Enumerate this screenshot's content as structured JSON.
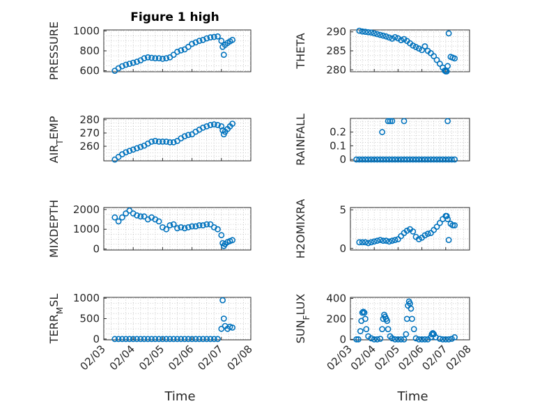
{
  "figure": {
    "title": "Figure 1 high",
    "marker_color": "#0072bd",
    "xlabel": "Time"
  },
  "chart_data": [
    {
      "type": "scatter",
      "ylabel": "PRESSURE",
      "title": "Figure 1 high",
      "xlim": [
        "2024-02-03",
        "2024-02-08"
      ],
      "ylim": [
        590,
        1010
      ],
      "yticks": [
        600,
        800,
        1000
      ],
      "grid": true,
      "series": [
        {
          "x": [
            "2024-02-03T09:00",
            "2024-02-03T12:00",
            "2024-02-03T15:00",
            "2024-02-03T18:00",
            "2024-02-03T21:00",
            "2024-02-04T00:00",
            "2024-02-04T03:00",
            "2024-02-04T06:00",
            "2024-02-04T09:00",
            "2024-02-04T12:00",
            "2024-02-04T15:00",
            "2024-02-04T18:00",
            "2024-02-04T21:00",
            "2024-02-05T00:00",
            "2024-02-05T03:00",
            "2024-02-05T06:00",
            "2024-02-05T09:00",
            "2024-02-05T12:00",
            "2024-02-05T15:00",
            "2024-02-05T18:00",
            "2024-02-05T21:00",
            "2024-02-06T00:00",
            "2024-02-06T03:00",
            "2024-02-06T06:00",
            "2024-02-06T09:00",
            "2024-02-06T12:00",
            "2024-02-06T15:00",
            "2024-02-06T18:00",
            "2024-02-06T21:00",
            "2024-02-07T00:00",
            "2024-02-07T01:00",
            "2024-02-07T02:00",
            "2024-02-07T03:00",
            "2024-02-07T05:00",
            "2024-02-07T07:00",
            "2024-02-07T09:00"
          ],
          "y": [
            600,
            625,
            645,
            660,
            670,
            680,
            690,
            705,
            725,
            735,
            730,
            725,
            725,
            720,
            725,
            735,
            760,
            790,
            805,
            815,
            840,
            870,
            885,
            900,
            910,
            925,
            935,
            940,
            945,
            900,
            840,
            760,
            860,
            880,
            895,
            910
          ]
        }
      ]
    },
    {
      "type": "scatter",
      "ylabel": "THETA",
      "xlim": [
        "2024-02-03",
        "2024-02-08"
      ],
      "ylim": [
        279.5,
        290.5
      ],
      "yticks": [
        280,
        285,
        290
      ],
      "grid": true,
      "series": [
        {
          "x": [
            "2024-02-03T09:00",
            "2024-02-03T12:00",
            "2024-02-03T15:00",
            "2024-02-03T18:00",
            "2024-02-03T21:00",
            "2024-02-04T00:00",
            "2024-02-04T03:00",
            "2024-02-04T06:00",
            "2024-02-04T09:00",
            "2024-02-04T12:00",
            "2024-02-04T15:00",
            "2024-02-04T18:00",
            "2024-02-04T21:00",
            "2024-02-05T00:00",
            "2024-02-05T03:00",
            "2024-02-05T06:00",
            "2024-02-05T09:00",
            "2024-02-05T12:00",
            "2024-02-05T15:00",
            "2024-02-05T18:00",
            "2024-02-05T21:00",
            "2024-02-06T00:00",
            "2024-02-06T03:00",
            "2024-02-06T06:00",
            "2024-02-06T09:00",
            "2024-02-06T12:00",
            "2024-02-06T15:00",
            "2024-02-06T18:00",
            "2024-02-06T21:00",
            "2024-02-06T23:00",
            "2024-02-07T00:00",
            "2024-02-07T01:00",
            "2024-02-07T02:00",
            "2024-02-07T03:00",
            "2024-02-07T05:00",
            "2024-02-07T07:00",
            "2024-02-07T09:00"
          ],
          "y": [
            290.3,
            290.1,
            290.0,
            289.9,
            289.8,
            289.6,
            289.4,
            289.2,
            289.0,
            288.8,
            288.5,
            288.2,
            288.6,
            288.3,
            287.8,
            288.1,
            287.6,
            287.0,
            286.4,
            286.0,
            285.6,
            285.2,
            286.2,
            285.0,
            284.4,
            283.6,
            282.6,
            281.6,
            280.6,
            279.8,
            279.6,
            279.6,
            281.0,
            289.6,
            283.4,
            283.2,
            283.0
          ]
        }
      ]
    },
    {
      "type": "scatter",
      "ylabel": "AIR",
      "ylabel_sub": "T",
      "ylabel_rest": "EMP",
      "xlim": [
        "2024-02-03",
        "2024-02-08"
      ],
      "ylim": [
        249,
        281
      ],
      "yticks": [
        260,
        270,
        280
      ],
      "grid": true,
      "series": [
        {
          "x": [
            "2024-02-03T09:00",
            "2024-02-03T12:00",
            "2024-02-03T15:00",
            "2024-02-03T18:00",
            "2024-02-03T21:00",
            "2024-02-04T00:00",
            "2024-02-04T03:00",
            "2024-02-04T06:00",
            "2024-02-04T09:00",
            "2024-02-04T12:00",
            "2024-02-04T15:00",
            "2024-02-04T18:00",
            "2024-02-04T21:00",
            "2024-02-05T00:00",
            "2024-02-05T03:00",
            "2024-02-05T06:00",
            "2024-02-05T09:00",
            "2024-02-05T12:00",
            "2024-02-05T15:00",
            "2024-02-05T18:00",
            "2024-02-05T21:00",
            "2024-02-06T00:00",
            "2024-02-06T03:00",
            "2024-02-06T06:00",
            "2024-02-06T09:00",
            "2024-02-06T12:00",
            "2024-02-06T15:00",
            "2024-02-06T18:00",
            "2024-02-06T21:00",
            "2024-02-07T00:00",
            "2024-02-07T01:00",
            "2024-02-07T02:00",
            "2024-02-07T03:00",
            "2024-02-07T05:00",
            "2024-02-07T07:00",
            "2024-02-07T09:00"
          ],
          "y": [
            250,
            252,
            254,
            255.5,
            256.5,
            257.5,
            258.5,
            259.5,
            260.5,
            262,
            263.5,
            264,
            263.5,
            263.5,
            263.5,
            263,
            263,
            264,
            266,
            267.5,
            268.5,
            269,
            271,
            272.5,
            274,
            275,
            276,
            276.5,
            276,
            275,
            272,
            269,
            271,
            273,
            275,
            277
          ]
        }
      ]
    },
    {
      "type": "scatter",
      "ylabel": "RAINFALL",
      "xlim": [
        "2024-02-03",
        "2024-02-08"
      ],
      "ylim": [
        -0.01,
        0.3
      ],
      "yticks": [
        0,
        0.1,
        0.2
      ],
      "grid": true,
      "series": [
        {
          "x": [
            "2024-02-03T06:00",
            "2024-02-03T09:00",
            "2024-02-03T12:00",
            "2024-02-03T15:00",
            "2024-02-03T18:00",
            "2024-02-03T21:00",
            "2024-02-04T00:00",
            "2024-02-04T03:00",
            "2024-02-04T06:00",
            "2024-02-04T09:00",
            "2024-02-04T12:00",
            "2024-02-04T15:00",
            "2024-02-04T18:00",
            "2024-02-04T21:00",
            "2024-02-05T00:00",
            "2024-02-05T03:00",
            "2024-02-05T06:00",
            "2024-02-05T09:00",
            "2024-02-05T12:00",
            "2024-02-05T15:00",
            "2024-02-05T18:00",
            "2024-02-05T21:00",
            "2024-02-06T00:00",
            "2024-02-06T03:00",
            "2024-02-06T06:00",
            "2024-02-06T09:00",
            "2024-02-06T12:00",
            "2024-02-06T15:00",
            "2024-02-06T18:00",
            "2024-02-06T21:00",
            "2024-02-07T00:00",
            "2024-02-07T03:00",
            "2024-02-07T06:00",
            "2024-02-07T09:00",
            "2024-02-04T08:00",
            "2024-02-04T14:00",
            "2024-02-04T16:00",
            "2024-02-04T18:00",
            "2024-02-05T06:00",
            "2024-02-07T02:00"
          ],
          "y": [
            0,
            0,
            0,
            0,
            0,
            0,
            0,
            0,
            0,
            0,
            0,
            0,
            0,
            0,
            0,
            0,
            0,
            0,
            0,
            0,
            0,
            0,
            0,
            0,
            0,
            0,
            0,
            0,
            0,
            0,
            0,
            0,
            0,
            0,
            0.2,
            0.28,
            0.28,
            0.28,
            0.28,
            0.28
          ]
        }
      ]
    },
    {
      "type": "scatter",
      "ylabel": "MIXDEPTH",
      "xlim": [
        "2024-02-03",
        "2024-02-08"
      ],
      "ylim": [
        -50,
        2100
      ],
      "yticks": [
        0,
        1000,
        2000
      ],
      "grid": true,
      "series": [
        {
          "x": [
            "2024-02-03T09:00",
            "2024-02-03T12:00",
            "2024-02-03T15:00",
            "2024-02-03T18:00",
            "2024-02-03T21:00",
            "2024-02-04T00:00",
            "2024-02-04T03:00",
            "2024-02-04T06:00",
            "2024-02-04T09:00",
            "2024-02-04T12:00",
            "2024-02-04T15:00",
            "2024-02-04T18:00",
            "2024-02-04T21:00",
            "2024-02-05T00:00",
            "2024-02-05T03:00",
            "2024-02-05T06:00",
            "2024-02-05T09:00",
            "2024-02-05T12:00",
            "2024-02-05T15:00",
            "2024-02-05T18:00",
            "2024-02-05T21:00",
            "2024-02-06T00:00",
            "2024-02-06T03:00",
            "2024-02-06T06:00",
            "2024-02-06T09:00",
            "2024-02-06T12:00",
            "2024-02-06T15:00",
            "2024-02-06T18:00",
            "2024-02-06T21:00",
            "2024-02-07T00:00",
            "2024-02-07T01:00",
            "2024-02-07T02:00",
            "2024-02-07T03:00",
            "2024-02-07T05:00",
            "2024-02-07T07:00",
            "2024-02-07T09:00"
          ],
          "y": [
            1600,
            1400,
            1600,
            1800,
            1950,
            1800,
            1700,
            1650,
            1650,
            1500,
            1600,
            1500,
            1400,
            1100,
            1000,
            1200,
            1250,
            1050,
            1100,
            1050,
            1100,
            1150,
            1150,
            1200,
            1200,
            1250,
            1250,
            1100,
            1000,
            700,
            300,
            150,
            250,
            350,
            400,
            450
          ]
        }
      ]
    },
    {
      "type": "scatter",
      "ylabel": "H2OMIXRA",
      "xlim": [
        "2024-02-03",
        "2024-02-08"
      ],
      "ylim": [
        -0.2,
        5.3
      ],
      "yticks": [
        0,
        5
      ],
      "grid": true,
      "series": [
        {
          "x": [
            "2024-02-03T09:00",
            "2024-02-03T12:00",
            "2024-02-03T15:00",
            "2024-02-03T18:00",
            "2024-02-03T21:00",
            "2024-02-04T00:00",
            "2024-02-04T03:00",
            "2024-02-04T06:00",
            "2024-02-04T09:00",
            "2024-02-04T12:00",
            "2024-02-04T15:00",
            "2024-02-04T18:00",
            "2024-02-04T21:00",
            "2024-02-05T00:00",
            "2024-02-05T03:00",
            "2024-02-05T06:00",
            "2024-02-05T09:00",
            "2024-02-05T12:00",
            "2024-02-05T15:00",
            "2024-02-05T18:00",
            "2024-02-05T21:00",
            "2024-02-06T00:00",
            "2024-02-06T03:00",
            "2024-02-06T06:00",
            "2024-02-06T09:00",
            "2024-02-06T12:00",
            "2024-02-06T15:00",
            "2024-02-06T18:00",
            "2024-02-06T21:00",
            "2024-02-07T00:00",
            "2024-02-07T01:00",
            "2024-02-07T02:00",
            "2024-02-07T03:00",
            "2024-02-07T05:00",
            "2024-02-07T07:00",
            "2024-02-07T09:00"
          ],
          "y": [
            0.8,
            0.8,
            0.8,
            0.7,
            0.8,
            0.9,
            1.0,
            1.1,
            1.0,
            1.0,
            0.9,
            1.0,
            1.1,
            1.2,
            1.6,
            2.0,
            2.3,
            2.5,
            2.2,
            1.5,
            1.2,
            1.4,
            1.7,
            1.9,
            2.0,
            2.4,
            2.8,
            3.3,
            3.8,
            4.2,
            4.2,
            3.8,
            1.1,
            3.2,
            3.0,
            3.0
          ]
        }
      ]
    },
    {
      "type": "scatter",
      "ylabel": "TERR",
      "ylabel_sub": "M",
      "ylabel_rest": "SL",
      "xlim": [
        "2024-02-03",
        "2024-02-08"
      ],
      "ylim": [
        -20,
        1020
      ],
      "yticks": [
        0,
        500,
        1000
      ],
      "xticks": [
        "02/03",
        "02/04",
        "02/05",
        "02/06",
        "02/07",
        "02/08"
      ],
      "xlabel": "Time",
      "grid": true,
      "series": [
        {
          "x": [
            "2024-02-03T09:00",
            "2024-02-03T12:00",
            "2024-02-03T15:00",
            "2024-02-03T18:00",
            "2024-02-03T21:00",
            "2024-02-04T00:00",
            "2024-02-04T03:00",
            "2024-02-04T06:00",
            "2024-02-04T09:00",
            "2024-02-04T12:00",
            "2024-02-04T15:00",
            "2024-02-04T18:00",
            "2024-02-04T21:00",
            "2024-02-05T00:00",
            "2024-02-05T03:00",
            "2024-02-05T06:00",
            "2024-02-05T09:00",
            "2024-02-05T12:00",
            "2024-02-05T15:00",
            "2024-02-05T18:00",
            "2024-02-05T21:00",
            "2024-02-06T00:00",
            "2024-02-06T03:00",
            "2024-02-06T06:00",
            "2024-02-06T09:00",
            "2024-02-06T12:00",
            "2024-02-06T15:00",
            "2024-02-06T18:00",
            "2024-02-06T21:00",
            "2024-02-07T00:00",
            "2024-02-07T01:00",
            "2024-02-07T02:00",
            "2024-02-07T03:00",
            "2024-02-07T05:00",
            "2024-02-07T07:00",
            "2024-02-07T09:00"
          ],
          "y": [
            0,
            0,
            0,
            0,
            0,
            0,
            0,
            0,
            0,
            0,
            0,
            0,
            0,
            0,
            0,
            0,
            0,
            0,
            0,
            0,
            0,
            0,
            0,
            0,
            0,
            0,
            0,
            0,
            0,
            250,
            950,
            500,
            320,
            250,
            300,
            280
          ]
        }
      ]
    },
    {
      "type": "scatter",
      "ylabel": "SUN",
      "ylabel_sub": "F",
      "ylabel_rest": "LUX",
      "xlim": [
        "2024-02-03",
        "2024-02-08"
      ],
      "ylim": [
        -5,
        410
      ],
      "yticks": [
        0,
        200,
        400
      ],
      "xticks": [
        "02/03",
        "02/04",
        "02/05",
        "02/06",
        "02/07",
        "02/08"
      ],
      "xlabel": "Time",
      "grid": true,
      "series": [
        {
          "x": [
            "2024-02-03T06:00",
            "2024-02-03T08:00",
            "2024-02-03T10:00",
            "2024-02-03T11:00",
            "2024-02-03T12:00",
            "2024-02-03T13:00",
            "2024-02-03T14:00",
            "2024-02-03T15:00",
            "2024-02-03T16:00",
            "2024-02-03T18:00",
            "2024-02-03T21:00",
            "2024-02-04T00:00",
            "2024-02-04T03:00",
            "2024-02-04T06:00",
            "2024-02-04T08:00",
            "2024-02-04T09:00",
            "2024-02-04T10:00",
            "2024-02-04T11:00",
            "2024-02-04T12:00",
            "2024-02-04T13:00",
            "2024-02-04T14:00",
            "2024-02-04T16:00",
            "2024-02-04T18:00",
            "2024-02-04T21:00",
            "2024-02-05T00:00",
            "2024-02-05T03:00",
            "2024-02-05T06:00",
            "2024-02-05T08:00",
            "2024-02-05T09:00",
            "2024-02-05T10:00",
            "2024-02-05T11:00",
            "2024-02-05T12:00",
            "2024-02-05T13:00",
            "2024-02-05T14:00",
            "2024-02-05T16:00",
            "2024-02-05T18:00",
            "2024-02-05T21:00",
            "2024-02-06T00:00",
            "2024-02-06T03:00",
            "2024-02-06T06:00",
            "2024-02-06T09:00",
            "2024-02-06T10:00",
            "2024-02-06T11:00",
            "2024-02-06T12:00",
            "2024-02-06T14:00",
            "2024-02-06T18:00",
            "2024-02-06T21:00",
            "2024-02-07T00:00",
            "2024-02-07T03:00",
            "2024-02-07T06:00",
            "2024-02-07T09:00"
          ],
          "y": [
            0,
            0,
            80,
            180,
            260,
            270,
            260,
            200,
            100,
            30,
            10,
            0,
            0,
            5,
            100,
            200,
            240,
            220,
            200,
            180,
            100,
            30,
            10,
            0,
            0,
            0,
            0,
            50,
            200,
            330,
            370,
            350,
            300,
            200,
            100,
            10,
            0,
            0,
            0,
            0,
            20,
            50,
            60,
            50,
            20,
            5,
            0,
            0,
            0,
            5,
            20
          ]
        }
      ]
    }
  ]
}
